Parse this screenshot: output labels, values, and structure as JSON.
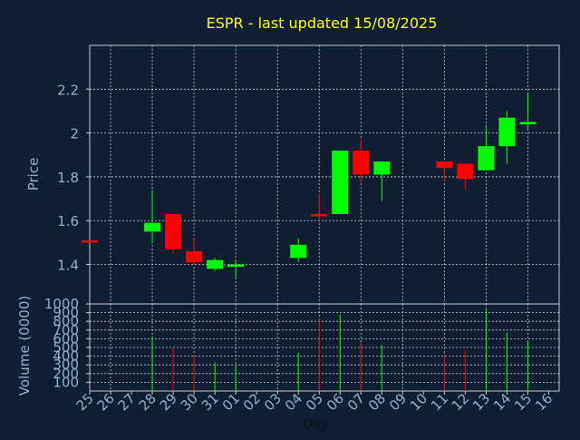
{
  "chart_data": {
    "type": "candlestick",
    "title": "ESPR - last updated 15/08/2025",
    "price_axis": {
      "label": "Price",
      "ylim": [
        1.22,
        2.4
      ],
      "ticks": [
        "1.4",
        "1.6",
        "1.8",
        "2",
        "2.2"
      ],
      "tick_values": [
        1.4,
        1.6,
        1.8,
        2.0,
        2.2
      ]
    },
    "volume_axis": {
      "label": "Volume (0000)",
      "ylim": [
        0,
        1000
      ],
      "ticks": [
        "100",
        "200",
        "300",
        "400",
        "500",
        "600",
        "700",
        "800",
        "900",
        "1000"
      ],
      "tick_values": [
        100,
        200,
        300,
        400,
        500,
        600,
        700,
        800,
        900,
        1000
      ]
    },
    "x_axis": {
      "label": "Day",
      "ticks": [
        "25",
        "26",
        "27",
        "28",
        "29",
        "30",
        "31",
        "01",
        "02",
        "03",
        "04",
        "05",
        "06",
        "07",
        "08",
        "09",
        "10",
        "11",
        "12",
        "13",
        "14",
        "15",
        "16"
      ]
    },
    "grid": true,
    "colors": {
      "up": "#00ff00",
      "down": "#ff0000",
      "title": "#ffff00",
      "axis_text": "#8fb0d0",
      "background": "#0f1e30",
      "grid": "#c8c8c8"
    },
    "candles": [
      {
        "day": "25",
        "open": 1.51,
        "high": 1.51,
        "low": 1.5,
        "close": 1.5,
        "volume": 0
      },
      {
        "day": "28",
        "open": 1.55,
        "high": 1.74,
        "low": 1.5,
        "close": 1.59,
        "volume": 620
      },
      {
        "day": "29",
        "open": 1.63,
        "high": 1.63,
        "low": 1.45,
        "close": 1.47,
        "volume": 500
      },
      {
        "day": "30",
        "open": 1.46,
        "high": 1.52,
        "low": 1.4,
        "close": 1.41,
        "volume": 420
      },
      {
        "day": "31",
        "open": 1.38,
        "high": 1.43,
        "low": 1.37,
        "close": 1.42,
        "volume": 330
      },
      {
        "day": "01",
        "open": 1.39,
        "high": 1.42,
        "low": 1.34,
        "close": 1.4,
        "volume": 280
      },
      {
        "day": "04",
        "open": 1.43,
        "high": 1.52,
        "low": 1.41,
        "close": 1.49,
        "volume": 440
      },
      {
        "day": "05",
        "open": 1.63,
        "high": 1.72,
        "low": 1.6,
        "close": 1.62,
        "volume": 830
      },
      {
        "day": "06",
        "open": 1.63,
        "high": 1.92,
        "low": 1.63,
        "close": 1.92,
        "volume": 880
      },
      {
        "day": "07",
        "open": 1.92,
        "high": 1.97,
        "low": 1.77,
        "close": 1.81,
        "volume": 560
      },
      {
        "day": "08",
        "open": 1.81,
        "high": 1.87,
        "low": 1.69,
        "close": 1.87,
        "volume": 530
      },
      {
        "day": "11",
        "open": 1.87,
        "high": 1.87,
        "low": 1.78,
        "close": 1.84,
        "volume": 430
      },
      {
        "day": "12",
        "open": 1.86,
        "high": 1.86,
        "low": 1.74,
        "close": 1.79,
        "volume": 470
      },
      {
        "day": "13",
        "open": 1.83,
        "high": 2.03,
        "low": 1.83,
        "close": 1.94,
        "volume": 950
      },
      {
        "day": "14",
        "open": 1.94,
        "high": 2.1,
        "low": 1.86,
        "close": 2.07,
        "volume": 670
      },
      {
        "day": "15",
        "open": 2.04,
        "high": 2.18,
        "low": 2.02,
        "close": 2.05,
        "volume": 580
      }
    ]
  }
}
